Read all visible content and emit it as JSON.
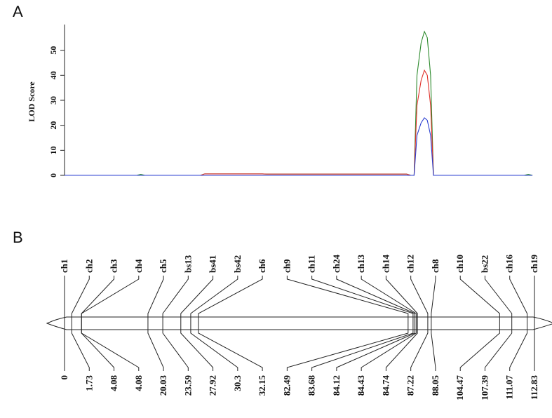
{
  "chart_data": [
    {
      "panel": "A",
      "type": "line",
      "ylabel": "LOD Score",
      "yticks": [
        0,
        10,
        20,
        30,
        40,
        50
      ],
      "ylim": [
        0,
        60
      ],
      "xlim": [
        0,
        114
      ],
      "grid": false,
      "legend": "none",
      "series": [
        {
          "color": "#2e8b2e",
          "x": [
            0,
            17.5,
            18.5,
            19.5,
            33,
            34,
            48,
            49,
            83,
            84,
            84.8,
            85.5,
            86.5,
            87.3,
            88,
            88.8,
            89.5,
            90.5,
            111.5,
            112.5,
            113.5
          ],
          "y": [
            0,
            0,
            0.4,
            0,
            0,
            0.6,
            0.6,
            0.5,
            0.5,
            0,
            0,
            40,
            53,
            57.5,
            55,
            40,
            0,
            0,
            0,
            0.4,
            0
          ]
        },
        {
          "color": "#e0302a",
          "x": [
            0,
            33,
            34,
            48,
            49,
            83,
            84,
            84.8,
            85.5,
            86.5,
            87.3,
            88,
            88.8,
            89.5,
            113.5
          ],
          "y": [
            0,
            0,
            0.6,
            0.6,
            0.5,
            0.5,
            0,
            0,
            28,
            38,
            42,
            40,
            28,
            0,
            0
          ]
        },
        {
          "color": "#2b3fd1",
          "x": [
            0,
            84,
            84.8,
            85.5,
            86.5,
            87.3,
            88,
            88.8,
            89.5,
            113.5
          ],
          "y": [
            0,
            0,
            0,
            16,
            21,
            23,
            22,
            16,
            0,
            0
          ]
        }
      ]
    },
    {
      "panel": "B",
      "type": "genetic-map",
      "markers": [
        "ch1",
        "ch2",
        "ch3",
        "ch4",
        "ch5",
        "bs13",
        "bs41",
        "bs42",
        "ch6",
        "ch9",
        "ch11",
        "ch24",
        "ch13",
        "ch14",
        "ch12",
        "ch8",
        "ch10",
        "bs22",
        "ch16",
        "ch19"
      ],
      "positions_label": [
        "0",
        "1.73",
        "4.08",
        "4.08",
        "20.03",
        "23.59",
        "27.92",
        "30.3",
        "32.15",
        "82.49",
        "83.68",
        "84.12",
        "84.43",
        "84.74",
        "87.22",
        "88.05",
        "104.47",
        "107.39",
        "111.07",
        "112.83"
      ],
      "positions": [
        0,
        1.73,
        4.08,
        4.08,
        20.03,
        23.59,
        27.92,
        30.3,
        32.15,
        82.49,
        83.68,
        84.12,
        84.43,
        84.74,
        87.22,
        88.05,
        104.47,
        107.39,
        111.07,
        112.83
      ]
    }
  ]
}
